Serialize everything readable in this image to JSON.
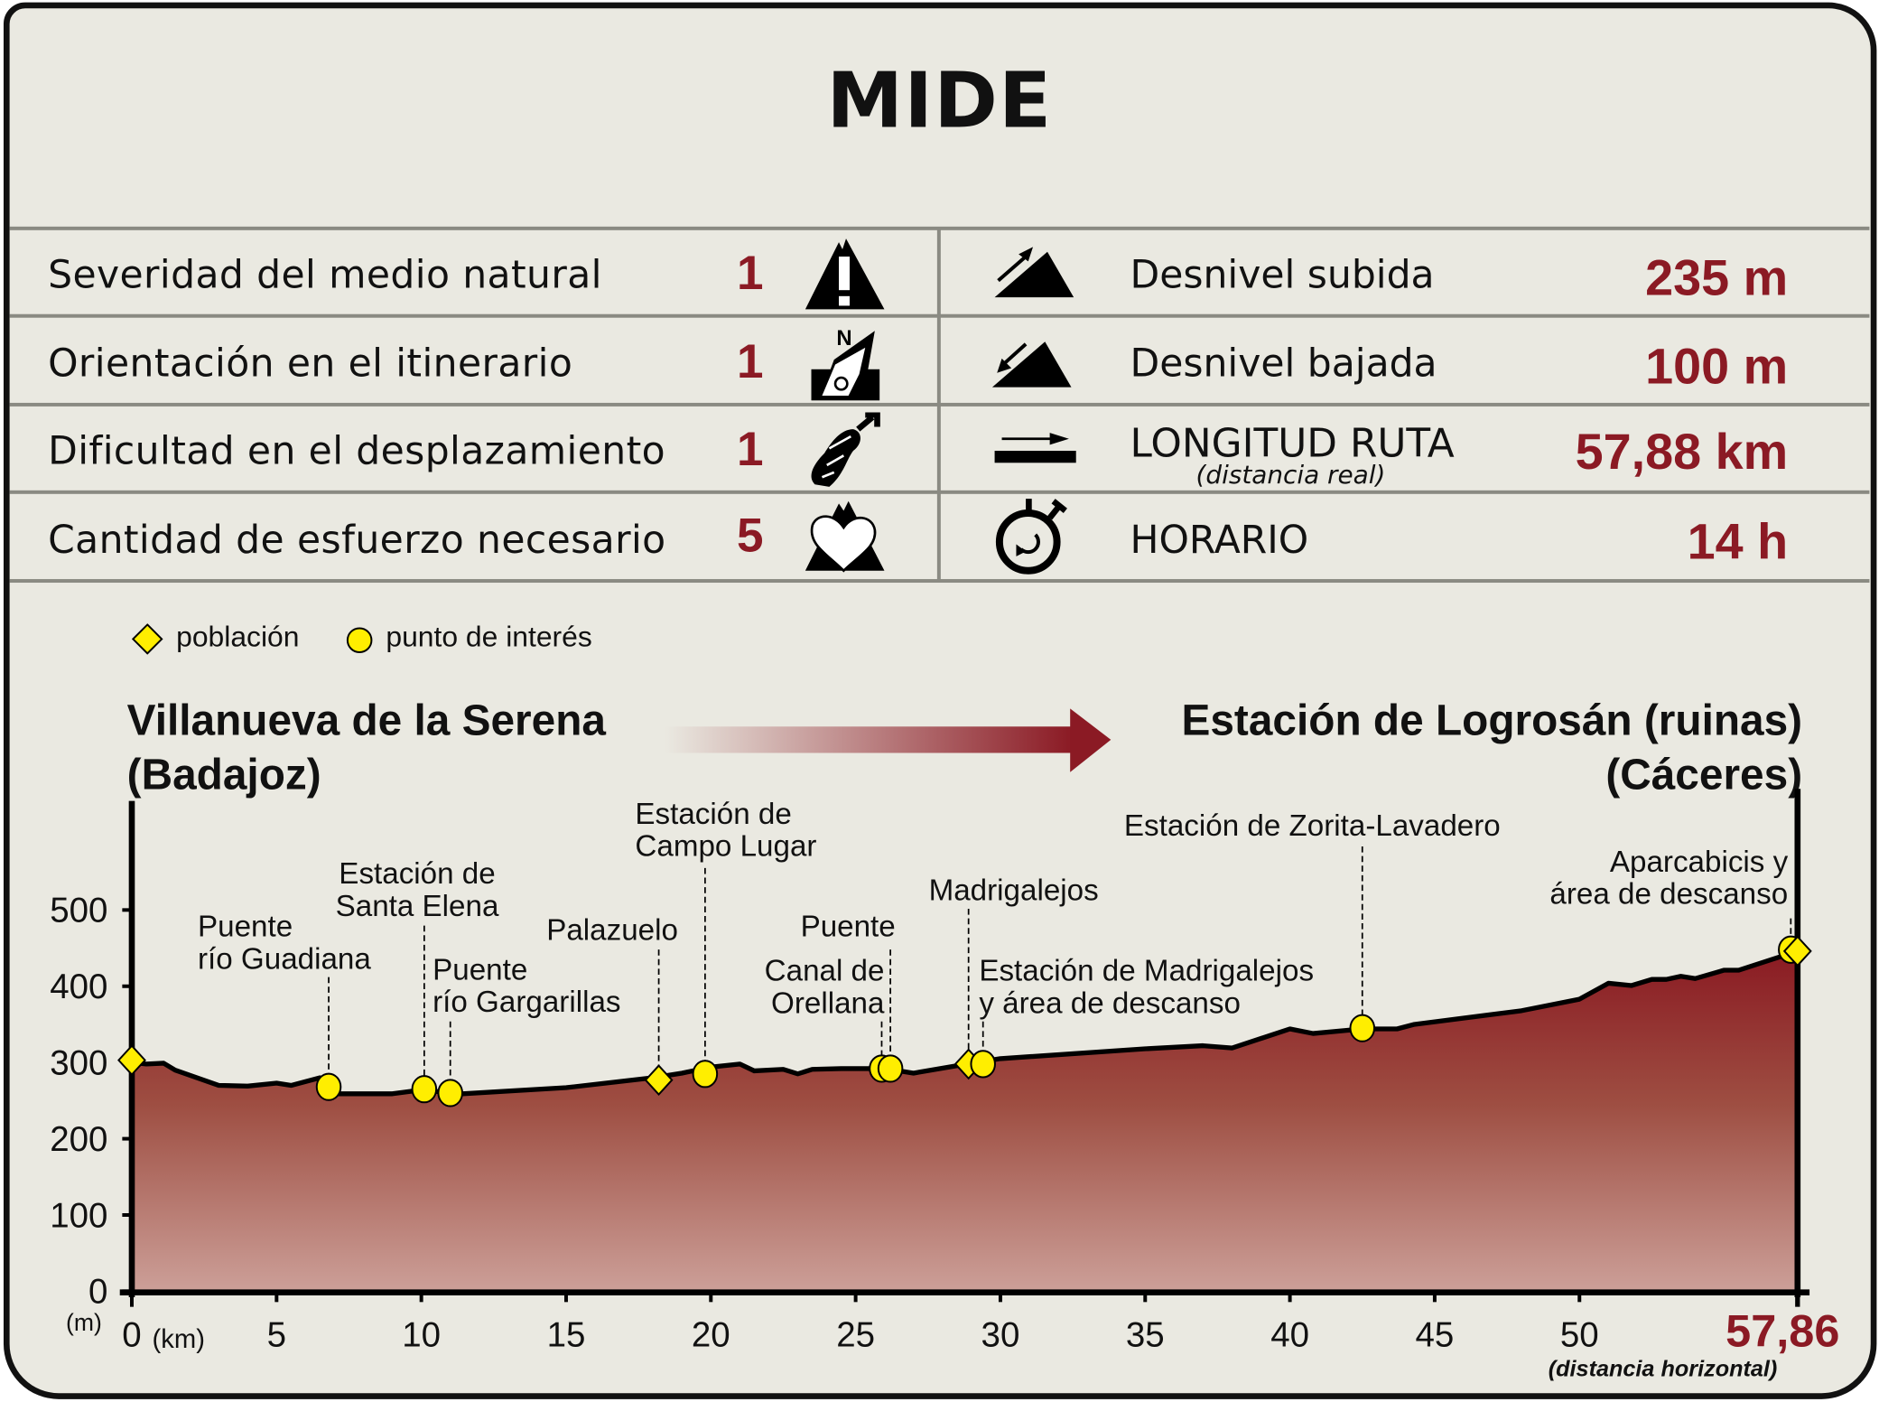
{
  "title": "MIDE",
  "mide": {
    "rows": [
      {
        "label": "Severidad del medio natural",
        "value": "1",
        "icon": "alert-mountain-icon"
      },
      {
        "label": "Orientación en el itinerario",
        "value": "1",
        "icon": "compass-orientation-icon"
      },
      {
        "label": "Dificultad en el desplazamiento",
        "value": "1",
        "icon": "boot-sole-icon"
      },
      {
        "label": "Cantidad de esfuerzo necesario",
        "value": "5",
        "icon": "heart-mountain-icon"
      }
    ],
    "stats": [
      {
        "label": "Desnivel subida",
        "value": "235 m",
        "icon": "ascent-icon"
      },
      {
        "label": "Desnivel bajada",
        "value": "100 m",
        "icon": "descent-icon"
      },
      {
        "label": "LONGITUD RUTA",
        "sublabel": "(distancia real)",
        "value": "57,88 km",
        "icon": "distance-icon"
      },
      {
        "label": "HORARIO",
        "value": "14 h",
        "icon": "stopwatch-icon"
      }
    ]
  },
  "legend": {
    "town": "población",
    "poi": "punto de interés"
  },
  "start": {
    "name": "Villanueva de la Serena\n(Badajoz)"
  },
  "end": {
    "name": "Estación de Logrosán (ruinas)\n(Cáceres)"
  },
  "colors": {
    "accent": "#8b1a24",
    "marker": "#ffee00",
    "background": "#eae9e1"
  },
  "chart_data": {
    "type": "area",
    "xlabel": "(km)",
    "ylabel": "(m)",
    "x_end_label": "57,86",
    "x_end_note": "(distancia horizontal)",
    "xlim": [
      0,
      57.86
    ],
    "ylim": [
      0,
      500
    ],
    "xticks": [
      "0",
      "5",
      "10",
      "15",
      "20",
      "25",
      "30",
      "35",
      "40",
      "45",
      "50"
    ],
    "yticks": [
      "0",
      "100",
      "200",
      "300",
      "400",
      "500"
    ],
    "grid": false,
    "profile": {
      "x": [
        0,
        0.5,
        1.1,
        1.5,
        3,
        4,
        5,
        5.5,
        6.5,
        7,
        9,
        10.2,
        11,
        15,
        18,
        19,
        20,
        21,
        21.5,
        22.5,
        23,
        23.5,
        24.5,
        26,
        27,
        29,
        30,
        35,
        37,
        38,
        40,
        40.8,
        42.5,
        43.7,
        44.3,
        48,
        50,
        51,
        51.8,
        52.5,
        53,
        53.5,
        54,
        55,
        55.5,
        57.86
      ],
      "y": [
        300,
        298,
        299,
        290,
        270,
        269,
        273,
        270,
        280,
        259,
        259,
        265,
        258,
        267,
        280,
        286,
        294,
        298,
        289,
        291,
        285,
        291,
        292,
        292,
        286,
        299,
        305,
        318,
        322,
        319,
        344,
        338,
        344,
        344,
        350,
        368,
        383,
        404,
        401,
        409,
        409,
        413,
        410,
        421,
        421,
        446
      ]
    },
    "markers": [
      {
        "type": "town",
        "x": 0,
        "y": 303
      },
      {
        "type": "poi",
        "x": 6.8,
        "y": 268
      },
      {
        "type": "poi",
        "x": 10.1,
        "y": 265
      },
      {
        "type": "poi",
        "x": 11.0,
        "y": 260
      },
      {
        "type": "town",
        "x": 18.2,
        "y": 277
      },
      {
        "type": "poi",
        "x": 19.8,
        "y": 285
      },
      {
        "type": "poi",
        "x": 25.9,
        "y": 292
      },
      {
        "type": "poi",
        "x": 26.2,
        "y": 292
      },
      {
        "type": "town",
        "x": 28.9,
        "y": 298
      },
      {
        "type": "poi",
        "x": 29.4,
        "y": 298
      },
      {
        "type": "poi",
        "x": 42.5,
        "y": 345
      },
      {
        "type": "poi",
        "x": 57.3,
        "y": 448
      },
      {
        "type": "town",
        "x": 57.86,
        "y": 446
      }
    ],
    "annotations": [
      {
        "text": "Puente\nrío Guadiana",
        "x": 6.8
      },
      {
        "text": "Estación de\nSanta Elena",
        "x": 10.1
      },
      {
        "text": "Puente\nrío Gargarillas",
        "x": 11.0
      },
      {
        "text": "Palazuelo",
        "x": 18.2
      },
      {
        "text": "Estación de\nCampo Lugar",
        "x": 19.8
      },
      {
        "text": "Puente",
        "x": 26.2
      },
      {
        "text": "Canal de\nOrellana",
        "x": 25.9
      },
      {
        "text": "Madrigalejos",
        "x": 28.9
      },
      {
        "text": "Estación de Madrigalejos\ny área de descanso",
        "x": 29.4
      },
      {
        "text": "Estación de Zorita-Lavadero",
        "x": 42.5
      },
      {
        "text": "Aparcabicis y\nárea de descanso",
        "x": 57.3
      }
    ]
  }
}
